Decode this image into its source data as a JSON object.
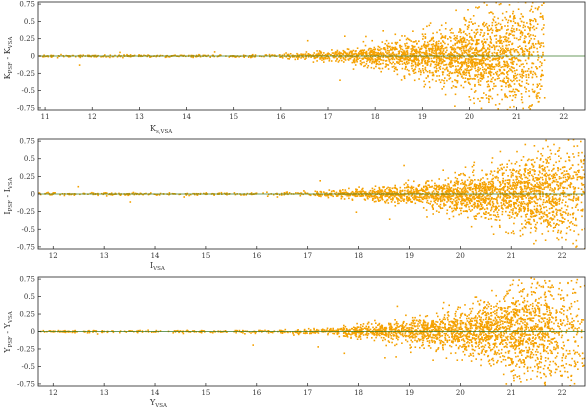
{
  "colors": {
    "points": "#f5a100",
    "zero_line": "#3a7a2a",
    "frame": "#222222"
  },
  "chart_data": [
    {
      "type": "scatter",
      "xlabel": {
        "main": "K",
        "sub": "s,VSA"
      },
      "ylabel": {
        "main": "K",
        "sub1": "PSF",
        "mid": " - K",
        "sub2": "VSA"
      },
      "xlim": [
        10.85,
        22.45
      ],
      "ylim": [
        -0.78,
        0.78
      ],
      "xticks": [
        11,
        12,
        13,
        14,
        15,
        16,
        17,
        18,
        19,
        20,
        21,
        22
      ],
      "xtick_labels": [
        "11",
        "12",
        "13",
        "14",
        "15",
        "16",
        "17",
        "18",
        "19",
        "20",
        "21",
        "22"
      ],
      "yticks": [
        0.75,
        0.5,
        0.25,
        0,
        -0.25,
        -0.5,
        -0.75
      ],
      "ytick_labels": [
        "0.75",
        "0.5",
        "0.25",
        "0",
        "-0.25",
        "-0.5",
        "-0.75"
      ],
      "reference_line_y": 0,
      "density_profile": {
        "x_peak": 20.6,
        "x_faint_limit": 21.6,
        "max_spread": 0.75
      },
      "grid": false
    },
    {
      "type": "scatter",
      "xlabel": {
        "main": "I",
        "sub": "VSA"
      },
      "ylabel": {
        "main": "I",
        "sub1": "PSF",
        "mid": " - I",
        "sub2": "VSA"
      },
      "xlim": [
        11.7,
        22.45
      ],
      "ylim": [
        -0.78,
        0.78
      ],
      "xticks": [
        12,
        13,
        14,
        15,
        16,
        17,
        18,
        19,
        20,
        21,
        22
      ],
      "xtick_labels": [
        "12",
        "13",
        "14",
        "15",
        "16",
        "17",
        "18",
        "19",
        "20",
        "21",
        "22"
      ],
      "yticks": [
        0.75,
        0.5,
        0.25,
        0,
        -0.25,
        -0.5,
        -0.75
      ],
      "ytick_labels": [
        "0.75",
        "0.5",
        "0.25",
        "0",
        "-0.25",
        "-0.5",
        "-0.75"
      ],
      "reference_line_y": 0,
      "density_profile": {
        "x_peak": 21.5,
        "x_faint_limit": 22.45,
        "max_spread": 0.6
      },
      "grid": false
    },
    {
      "type": "scatter",
      "xlabel": {
        "main": "Y",
        "sub": "VSA"
      },
      "ylabel": {
        "main": "Y",
        "sub1": "PSF",
        "mid": " - Y",
        "sub2": "VSA"
      },
      "xlim": [
        11.7,
        22.45
      ],
      "ylim": [
        -0.78,
        0.78
      ],
      "xticks": [
        12,
        13,
        14,
        15,
        16,
        17,
        18,
        19,
        20,
        21,
        22
      ],
      "xtick_labels": [
        "12",
        "13",
        "14",
        "15",
        "16",
        "17",
        "18",
        "19",
        "20",
        "21",
        "22"
      ],
      "yticks": [
        0.75,
        0.5,
        0.25,
        0,
        -0.25,
        -0.5,
        -0.75
      ],
      "ytick_labels": [
        "0.75",
        "0.5",
        "0.25",
        "0",
        "-0.25",
        "-0.5",
        "-0.75"
      ],
      "reference_line_y": 0,
      "density_profile": {
        "x_peak": 21.3,
        "x_faint_limit": 22.45,
        "max_spread": 0.7
      },
      "grid": false
    }
  ]
}
